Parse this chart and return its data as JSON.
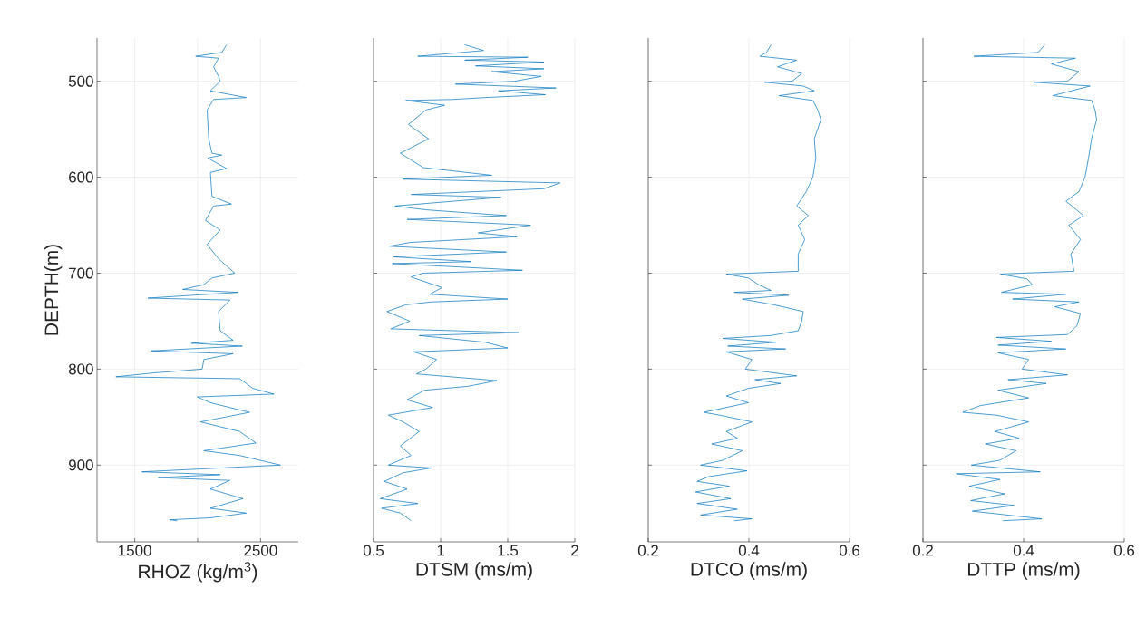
{
  "chart_data": [
    {
      "type": "line",
      "xlabel": "RHOZ (kg/m$^{3}$)",
      "ylabel": "DEPTH(m)",
      "grid": true,
      "xlim": [
        1200,
        2800
      ],
      "xticks": [
        1500,
        {
          "value": 2000,
          "label": null
        },
        2500
      ],
      "ylim": [
        980,
        455
      ],
      "yticks": [
        500,
        600,
        700,
        800,
        900
      ],
      "series": [
        {
          "color": "#0072bd",
          "x": [
            2230,
            2192,
            1984,
            2166,
            2127,
            2166,
            2179,
            2101,
            2386,
            2127,
            2075,
            2088,
            2114,
            2192,
            2080,
            2230,
            2101,
            2114,
            2269,
            2127,
            2062,
            2179,
            2075,
            2166,
            2295,
            2114,
            2049,
            1881,
            2321,
            1604,
            2256,
            2166,
            2179,
            2282,
            1951,
            2355,
            1630,
            2282,
            2049,
            2036,
            1648,
            1350,
            2334,
            2438,
            2606,
            1997,
            2101,
            2412,
            2023,
            2334,
            2463,
            2049,
            2334,
            2658,
            1557,
            2179,
            1686,
            2256,
            2101,
            2360,
            2101,
            2386,
            2101,
            1777,
            1837
          ],
          "values": [
            462,
            470,
            474,
            476,
            485,
            495,
            500,
            510,
            517,
            519,
            530,
            560,
            575,
            577,
            580,
            591,
            595,
            620,
            628,
            630,
            645,
            655,
            670,
            685,
            700,
            705,
            712,
            717,
            720,
            726,
            728,
            740,
            760,
            770,
            773,
            776,
            781,
            784,
            790,
            800,
            804,
            808,
            810,
            820,
            826,
            829,
            835,
            845,
            855,
            865,
            877,
            885,
            890,
            900,
            907,
            910,
            913,
            916,
            925,
            935,
            945,
            950,
            955,
            957,
            958
          ]
        }
      ]
    },
    {
      "type": "line",
      "xlabel": "DTSM (ms/m)",
      "grid": true,
      "tick_labels": "x",
      "xlim": [
        0.5,
        2
      ],
      "xticks": [
        0.5,
        1,
        1.5,
        2
      ],
      "ylim": [
        980,
        455
      ],
      "yticks": [
        500,
        600,
        700,
        800,
        900
      ],
      "series": [
        {
          "color": "#0072bd",
          "x": [
            1.18,
            1.32,
            0.83,
            1.65,
            1.18,
            1.77,
            1.26,
            1.77,
            1.38,
            1.75,
            1.55,
            1.11,
            1.86,
            1.43,
            1.78,
            1.33,
            1.09,
            0.74,
            1.03,
            0.89,
            0.76,
            0.91,
            0.7,
            0.87,
            1.38,
            0.72,
            1.89,
            1.77,
            0.78,
            1.45,
            0.66,
            0.89,
            1.49,
            0.75,
            1.67,
            1.28,
            1.57,
            0.77,
            0.62,
            1.49,
            0.65,
            1.23,
            0.64,
            1.61,
            0.87,
            0.78,
            1.01,
            0.92,
            1.5,
            0.93,
            0.74,
            0.6,
            0.77,
            0.63,
            1.58,
            0.84,
            1.33,
            1.5,
            0.8,
            0.97,
            0.89,
            0.82,
            1.42,
            1.2,
            0.88,
            0.75,
            0.94,
            0.61,
            0.72,
            0.84,
            0.7,
            0.78,
            0.61,
            0.93,
            0.72,
            0.58,
            0.75,
            0.55,
            0.83,
            0.56,
            0.7,
            0.78
          ],
          "values": [
            462,
            468,
            474,
            475,
            478,
            480,
            484,
            487,
            490,
            495,
            500,
            503,
            507,
            510,
            514,
            517,
            519,
            520,
            525,
            530,
            545,
            560,
            575,
            590,
            598,
            602,
            606,
            612,
            618,
            621,
            630,
            634,
            640,
            644,
            650,
            658,
            662,
            668,
            672,
            678,
            683,
            688,
            690,
            697,
            700,
            704,
            715,
            722,
            727,
            730,
            733,
            740,
            750,
            758,
            762,
            765,
            772,
            778,
            782,
            790,
            800,
            805,
            812,
            818,
            822,
            832,
            840,
            848,
            855,
            865,
            880,
            890,
            900,
            903,
            908,
            917,
            925,
            935,
            940,
            945,
            950,
            958
          ]
        }
      ]
    },
    {
      "type": "line",
      "xlabel": "DTCO (ms/m)",
      "grid": true,
      "tick_labels": "x",
      "xlim": [
        0.2,
        0.6
      ],
      "xticks": [
        0.2,
        0.4,
        0.6
      ],
      "ylim": [
        980,
        455
      ],
      "yticks": [
        500,
        600,
        700,
        800,
        900
      ],
      "series": [
        {
          "color": "#0072bd",
          "x": [
            0.444,
            0.435,
            0.422,
            0.495,
            0.457,
            0.505,
            0.486,
            0.431,
            0.508,
            0.53,
            0.46,
            0.527,
            0.537,
            0.543,
            0.53,
            0.533,
            0.527,
            0.514,
            0.495,
            0.518,
            0.498,
            0.511,
            0.498,
            0.498,
            0.399,
            0.355,
            0.399,
            0.419,
            0.444,
            0.371,
            0.479,
            0.387,
            0.45,
            0.508,
            0.505,
            0.498,
            0.444,
            0.348,
            0.454,
            0.358,
            0.473,
            0.355,
            0.406,
            0.393,
            0.495,
            0.412,
            0.463,
            0.399,
            0.355,
            0.399,
            0.31,
            0.342,
            0.406,
            0.355,
            0.377,
            0.326,
            0.387,
            0.348,
            0.304,
            0.396,
            0.32,
            0.297,
            0.361,
            0.294,
            0.364,
            0.297,
            0.377,
            0.304,
            0.406,
            0.371
          ],
          "values": [
            462,
            470,
            474,
            478,
            485,
            492,
            500,
            501,
            505,
            510,
            515,
            520,
            530,
            540,
            560,
            580,
            600,
            615,
            630,
            640,
            650,
            665,
            680,
            698,
            700,
            701,
            705,
            712,
            718,
            720,
            723,
            727,
            733,
            740,
            750,
            760,
            765,
            768,
            772,
            776,
            779,
            782,
            790,
            800,
            807,
            811,
            815,
            820,
            828,
            835,
            845,
            848,
            855,
            865,
            872,
            878,
            885,
            895,
            900,
            906,
            912,
            917,
            922,
            928,
            935,
            940,
            946,
            952,
            956,
            958
          ]
        }
      ]
    },
    {
      "type": "line",
      "xlabel": "DTTP (ms/m)",
      "grid": true,
      "tick_labels": "x",
      "xlim": [
        0.2,
        0.6
      ],
      "xticks": [
        0.2,
        0.4,
        0.6
      ],
      "ylim": [
        980,
        455
      ],
      "yticks": [
        500,
        600,
        700,
        800,
        900
      ],
      "series": [
        {
          "color": "#0072bd",
          "x": [
            0.442,
            0.429,
            0.301,
            0.503,
            0.455,
            0.51,
            0.487,
            0.42,
            0.532,
            0.458,
            0.535,
            0.542,
            0.545,
            0.535,
            0.529,
            0.522,
            0.51,
            0.484,
            0.519,
            0.49,
            0.513,
            0.494,
            0.5,
            0.397,
            0.354,
            0.407,
            0.417,
            0.356,
            0.484,
            0.378,
            0.51,
            0.462,
            0.513,
            0.506,
            0.487,
            0.346,
            0.455,
            0.349,
            0.484,
            0.349,
            0.41,
            0.397,
            0.487,
            0.369,
            0.445,
            0.349,
            0.41,
            0.314,
            0.279,
            0.346,
            0.41,
            0.343,
            0.391,
            0.324,
            0.385,
            0.353,
            0.296,
            0.433,
            0.266,
            0.353,
            0.292,
            0.362,
            0.295,
            0.381,
            0.298,
            0.436,
            0.359
          ],
          "values": [
            462,
            470,
            474,
            476,
            482,
            490,
            500,
            501,
            505,
            515,
            520,
            530,
            540,
            560,
            580,
            600,
            615,
            625,
            640,
            650,
            665,
            680,
            698,
            700,
            701,
            706,
            712,
            720,
            722,
            727,
            730,
            735,
            742,
            755,
            764,
            767,
            771,
            775,
            779,
            783,
            790,
            800,
            806,
            811,
            815,
            822,
            830,
            838,
            845,
            848,
            855,
            865,
            872,
            878,
            885,
            895,
            900,
            907,
            909,
            915,
            922,
            930,
            937,
            942,
            948,
            956,
            958
          ]
        }
      ]
    }
  ]
}
